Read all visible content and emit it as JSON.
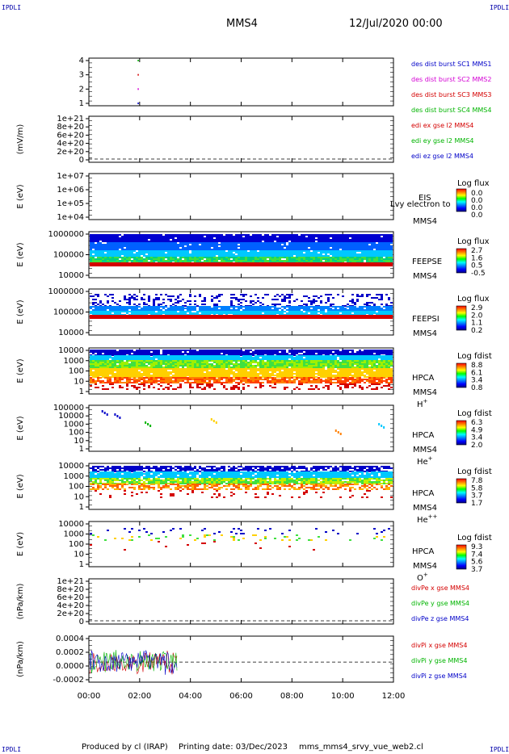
{
  "corner_tags": {
    "tl": "IPDLI",
    "tr": "IPDLI",
    "bl": "IPDLI",
    "br": "IPDLI"
  },
  "header": {
    "spacecraft": "MMS4",
    "date": "12/Jul/2020 00:00"
  },
  "footer": {
    "producer": "Produced by cl (IRAP)",
    "printing": "Printing date: 03/Dec/2023",
    "file": "mms_mms4_srvy_vue_web2.cl"
  },
  "colors": {
    "red": "#d40000",
    "green": "#00b400",
    "blue": "#0000c8",
    "magenta": "#d400d4"
  },
  "chart_data": [
    {
      "type": "scatter",
      "id": "burst",
      "ylabel": "",
      "yticks": [
        "1",
        "2",
        "3",
        "4"
      ],
      "ylim": [
        0.5,
        4.5
      ],
      "series": [
        {
          "name": "des dist burst SC1 MMS1",
          "color": "#0000c8",
          "x": [
            1.92
          ],
          "y": [
            1
          ]
        },
        {
          "name": "des dist burst SC2 MMS2",
          "color": "#d400d4",
          "x": [
            1.92
          ],
          "y": [
            2
          ]
        },
        {
          "name": "des dist burst SC3 MMS3",
          "color": "#d40000",
          "x": [
            1.92
          ],
          "y": [
            3
          ]
        },
        {
          "name": "des dist burst SC4 MMS4",
          "color": "#00b400",
          "x": [
            1.92
          ],
          "y": [
            4
          ]
        }
      ]
    },
    {
      "type": "line",
      "id": "edi",
      "ylabel": "(mV/m)",
      "yticks": [
        "0",
        "2e+20",
        "4e+20",
        "6e+20",
        "8e+20",
        "1e+21"
      ],
      "series": [
        {
          "name": "edi ex gse l2 MMS4",
          "color": "#d40000"
        },
        {
          "name": "edi ey gse l2 MMS4",
          "color": "#00b400"
        },
        {
          "name": "edi ez gse l2 MMS4",
          "color": "#0000c8"
        }
      ]
    },
    {
      "type": "heatmap",
      "id": "eis",
      "ylabel": "E (eV)",
      "yticks": [
        "1e+04",
        "1e+05",
        "1e+06",
        "1e+07"
      ],
      "labels": [
        "EIS",
        "MMS4"
      ],
      "overlay": "Lvy electron to",
      "colorbar": {
        "title": "Log flux",
        "ticks": [
          "0.0",
          "0.0",
          "0.0",
          "0.0"
        ]
      }
    },
    {
      "type": "heatmap",
      "id": "feepse",
      "ylabel": "E (eV)",
      "yticks": [
        "10000",
        "100000",
        "1000000"
      ],
      "labels": [
        "FEEPSE",
        "MMS4"
      ],
      "colorbar": {
        "title": "Log flux",
        "ticks": [
          "2.7",
          "1.6",
          "0.5",
          "-0.5"
        ]
      }
    },
    {
      "type": "heatmap",
      "id": "feepsi",
      "ylabel": "E (eV)",
      "yticks": [
        "10000",
        "100000",
        "1000000"
      ],
      "labels": [
        "FEEPSI",
        "MMS4"
      ],
      "colorbar": {
        "title": "Log flux",
        "ticks": [
          "2.9",
          "2.0",
          "1.1",
          "0.2"
        ]
      }
    },
    {
      "type": "heatmap",
      "id": "hpca_h",
      "ylabel": "E (eV)",
      "yticks": [
        "1",
        "10",
        "100",
        "1000",
        "10000"
      ],
      "labels": [
        "HPCA",
        "MMS4"
      ],
      "species": "H",
      "charge": "+",
      "colorbar": {
        "title": "Log fdist",
        "ticks": [
          "8.8",
          "6.1",
          "3.4",
          "0.8"
        ]
      }
    },
    {
      "type": "heatmap",
      "id": "hpca_he",
      "ylabel": "E (eV)",
      "yticks": [
        "1",
        "10",
        "100",
        "1000",
        "10000",
        "100000"
      ],
      "labels": [
        "HPCA",
        "MMS4"
      ],
      "species": "He",
      "charge": "+",
      "colorbar": {
        "title": "Log fdist",
        "ticks": [
          "6.3",
          "4.9",
          "3.4",
          "2.0"
        ]
      }
    },
    {
      "type": "heatmap",
      "id": "hpca_hepp",
      "ylabel": "E (eV)",
      "yticks": [
        "1",
        "10",
        "100",
        "1000",
        "10000"
      ],
      "labels": [
        "HPCA",
        "MMS4"
      ],
      "species": "He",
      "charge": "++",
      "colorbar": {
        "title": "Log fdist",
        "ticks": [
          "7.8",
          "5.8",
          "3.7",
          "1.7"
        ]
      }
    },
    {
      "type": "heatmap",
      "id": "hpca_o",
      "ylabel": "E (eV)",
      "yticks": [
        "1",
        "10",
        "100",
        "1000",
        "10000"
      ],
      "labels": [
        "HPCA",
        "MMS4"
      ],
      "species": "O",
      "charge": "+",
      "colorbar": {
        "title": "Log fdist",
        "ticks": [
          "9.3",
          "7.4",
          "5.6",
          "3.7"
        ]
      }
    },
    {
      "type": "line",
      "id": "divpe",
      "ylabel": "(nPa/km)",
      "yticks": [
        "0",
        "2e+20",
        "4e+20",
        "6e+20",
        "8e+20",
        "1e+21"
      ],
      "series": [
        {
          "name": "divPe x gse MMS4",
          "color": "#d40000"
        },
        {
          "name": "divPe y gse MMS4",
          "color": "#00b400"
        },
        {
          "name": "divPe z gse MMS4",
          "color": "#0000c8"
        }
      ]
    },
    {
      "type": "line",
      "id": "divpi",
      "ylabel": "(nPa/km)",
      "yticks": [
        "-0.0002",
        "0.0000",
        "0.0002",
        "0.0004"
      ],
      "ylim": [
        -0.0003,
        0.0004
      ],
      "x_range_hours": [
        0,
        3.5
      ],
      "series": [
        {
          "name": "divPi x gse MMS4",
          "color": "#d40000"
        },
        {
          "name": "divPi y gse MMS4",
          "color": "#00b400"
        },
        {
          "name": "divPi z gse MMS4",
          "color": "#0000c8"
        }
      ]
    }
  ],
  "xaxis": {
    "ticks": [
      "00:00",
      "02:00",
      "04:00",
      "06:00",
      "08:00",
      "10:00",
      "12:00"
    ],
    "range_hours": [
      0,
      12
    ]
  }
}
